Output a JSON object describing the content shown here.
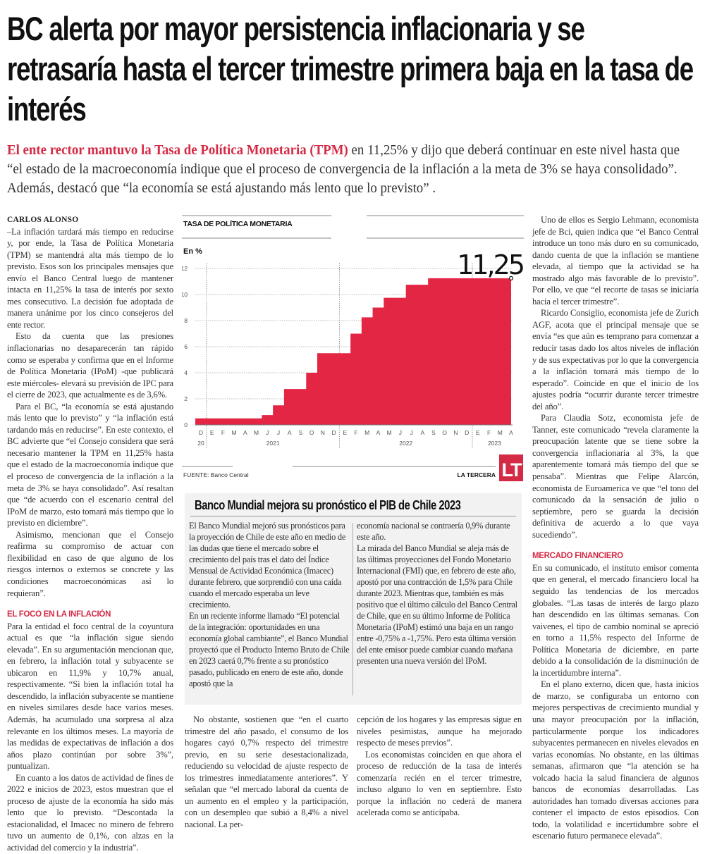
{
  "headline": "BC alerta por mayor persistencia inflacionaria y se retrasaría hasta el tercer trimestre primera baja en la tasa de interés",
  "deck": {
    "lead": "El ente rector mantuvo la Tasa de Política Monetaria (TPM)",
    "rest": " en 11,25% y dijo que deberá continuar en este nivel hasta que “el estado de la macroeconomía indique que el proceso de convergencia de la inflación a la meta de 3% se haya consolidado”.  Además, destacó que “la economía se está ajustando más lento que lo previsto” ."
  },
  "left_column": {
    "byline": "CARLOS ALONSO",
    "paragraphs_a": [
      "–La inflación tardará más tiempo en reducirse y, por ende, la Tasa de Política Monetaria (TPM) se mantendrá alta más tiempo de lo previsto. Esos son los principales mensajes que envío el Banco Central luego de mantener intacta en 11,25% la tasa de interés por sexto mes consecutivo. La decisión fue adoptada de manera unánime por los cinco consejeros del ente rector.",
      "Esto da cuenta que las presiones inflacionarias no desaparecerán tan rápido como se esperaba y confirma que en el Informe de Política Monetaria (IPoM) -que publicará este miércoles- elevará su previsión de IPC para el cierre de 2023, que actualmente es de 3,6%.",
      "Para el BC, “la economía se está ajustando más lento que lo previsto” y “la inflación está tardando más en reducirse”. En este contexto, el BC advierte que “el Consejo considera que será necesario mantener la TPM en 11,25% hasta que el estado de la macroeconomía indique que el proceso de convergencia de la inflación a la meta de 3% se haya consolidado”. Así resaltan que “de acuerdo con el escenario central del IPoM de marzo, esto tomará más tiempo que lo previsto en diciembre”.",
      "Asimismo, mencionan que el Consejo reafirma su compromiso de actuar con flexibilidad en caso de que alguno de los riesgos internos o externos se concrete y las condiciones macroeconómicas así lo requieran”."
    ],
    "subhead": "EL FOCO EN LA INFLACIÓN",
    "paragraphs_b": [
      "Para la entidad el foco central de la coyuntura actual es que “la inflación sigue siendo elevada”. En su argumentación mencionan que, en febrero, la inflación total y subyacente se ubicaron en 11,9% y 10,7% anual, respectivamente. “Si bien la inflación total ha descendido, la inflación subyacente se mantiene en niveles similares desde hace varios meses. Además, ha acumulado una sorpresa al alza relevante en los últimos meses. La mayoría de las medidas de expectativas de inflación a dos años plazo continúan por sobre 3%”, puntualizan.",
      "En cuanto a los datos de actividad de fines de 2022 e inicios de 2023, estos muestran que el proceso de ajuste de la economía ha sido más lento que lo previsto. “Descontada la estacionalidad, el Imacec no minero de febrero tuvo un aumento de 0,1%, con alzas en la actividad del comercio y la industria”."
    ]
  },
  "chart_data": {
    "type": "area",
    "step": true,
    "title": "TASA DE POLÍTICA MONETARIA",
    "ylabel": "En %",
    "ylim": [
      0,
      12
    ],
    "yticks": [
      "0",
      "2",
      "4",
      "6",
      "8",
      "10",
      "12"
    ],
    "grid": true,
    "categories": [
      "D",
      "E",
      "F",
      "M",
      "A",
      "M",
      "J",
      "J",
      "A",
      "S",
      "O",
      "N",
      "D",
      "E",
      "F",
      "M",
      "A",
      "M",
      "J",
      "J",
      "A",
      "S",
      "O",
      "N",
      "D",
      "E",
      "F",
      "M",
      "A"
    ],
    "years": [
      "20",
      "2021",
      "2022",
      "2023"
    ],
    "values": [
      0.5,
      0.5,
      0.5,
      0.5,
      0.5,
      0.5,
      0.75,
      1.5,
      2.75,
      2.75,
      4,
      5.5,
      5.5,
      5.5,
      7,
      8.25,
      9,
      9.75,
      9.75,
      10.75,
      10.75,
      11.25,
      11.25,
      11.25,
      11.25,
      11.25,
      11.25,
      11.25,
      11.25
    ],
    "last_value_label": "11,25",
    "color": "#e32644",
    "source": "FUENTE: Banco Central",
    "brand": "LA TERCERA",
    "logo": "LT"
  },
  "sidebar_box": {
    "title": "Banco Mundial mejora su pronóstico el PIB de Chile 2023",
    "col1": [
      "El Banco Mundial mejoró sus pronósticos para la proyección de Chile de este año en medio de las dudas que tiene el mercado sobre el crecimiento del país tras el dato del Índice Mensual de Actividad Económica (Imacec) durante febrero, que sorprendió con una caída cuando el mercado esperaba un leve crecimiento.",
      "En un reciente informe llamado “El potencial de la integración: oportunidades en una economía global cambiante”, el Banco Mundial proyectó que el Producto Interno Bruto de Chile en 2023 caerá 0,7% frente a su pronóstico pasado, publicado en enero de este año, donde apostó que la"
    ],
    "col2": [
      "economía nacional se contraería 0,9% durante este año.",
      "La mirada del Banco Mundial se aleja más de las últimas proyecciones del Fondo Monetario Internacional (FMI) que, en febrero de este año, apostó por una contracción de 1,5% para Chile durante 2023. Mientras que, también es más positivo que el último cálculo del Banco Central de Chile, que en su último Informe de Política Monetaria (IPoM) estimó una baja en un rango entre -0,75% a -1,75%. Pero esta última versión del ente emisor puede cambiar cuando mañana presenten una nueva versión del IPoM."
    ]
  },
  "lower_columns": {
    "col1": [
      "No obstante, sostienen que “en el cuarto trimestre del año pasado, el consumo de los hogares cayó 0,7% respecto del trimestre previo, en su serie desestacionalizada, reduciendo su velocidad de ajuste respecto de los trimestres inmediatamente anteriores”. Y señalan que “el mercado laboral da cuenta de un aumento en el empleo y la participación, con un desempleo que subió a 8,4% a nivel nacional. La per-"
    ],
    "col2": [
      "cepción de los hogares y las empresas sigue en niveles pesimistas, aunque ha mejorado respecto de meses previos”.",
      "Los economistas coinciden en que ahora el proceso de reducción de la tasa de interés comenzaría recién en el tercer trimestre, incluso alguno lo ven en septiembre. Esto porque la inflación no cederá de manera acelerada como se anticipaba."
    ]
  },
  "right_column": {
    "paragraphs_a": [
      "Uno de ellos es Sergio Lehmann, economista jefe de Bci, quien indica que “el Banco Central introduce un tono más duro en su comunicado, dando cuenta de que la inflación se mantiene elevada, al tiempo que la actividad se ha mostrado algo más favorable de lo previsto”. Por ello, ve que “el recorte de tasas se iniciaría hacia el tercer trimestre”.",
      "Ricardo Consiglio, economista jefe de Zurich AGF, acota que el principal mensaje que se envía “es que aún es temprano para comenzar a reducir tasas dado los altos niveles de inflación y de sus expectativas por lo que la convergencia a la inflación tomará más tiempo de lo esperado”. Coincide en que el inicio de los ajustes podría “ocurrir durante tercer trimestre del año”.",
      "Para Claudia Sotz, economista jefe de Tanner, este comunicado “revela claramente la preocupación latente que se tiene sobre la convergencia inflacionaria al 3%, la que aparentemente tomará más tiempo del que se pensaba”. Mientras que Felipe Alarcón, economista de Euroamerica ve que “el tono del comunicado da la sensación de julio o septiembre, pero se guarda la decisión definitiva de acuerdo a lo que vaya sucediendo”."
    ],
    "subhead": "MERCADO FINANCIERO",
    "paragraphs_b": [
      "En su comunicado, el instituto emisor comenta que en general, el mercado financiero local ha seguido las tendencias de los mercados globales. “Las tasas de interés de largo plazo han descendido en las últimas semanas. Con vaivenes, el tipo de cambio nominal se apreció en torno a 11,5% respecto del Informe de Política Monetaria de diciembre, en parte debido a la consolidación de la disminución de la incertidumbre interna”.",
      "En el plano externo, dicen que, hasta inicios de marzo, se configuraba un entorno con mejores perspectivas de crecimiento mundial y una mayor preocupación por la inflación, particularmente porque los indicadores subyacentes permanecen en niveles elevados en varias economías. No obstante, en las últimas semanas, afirmaron que “la atención se ha volcado hacia la salud financiera de algunos bancos de economías desarrolladas. Las autoridades han tomado diversas acciones para contener el impacto de estos episodios. Con todo, la volatilidad e incertidumbre sobre el escenario futuro permanece elevada”."
    ]
  }
}
